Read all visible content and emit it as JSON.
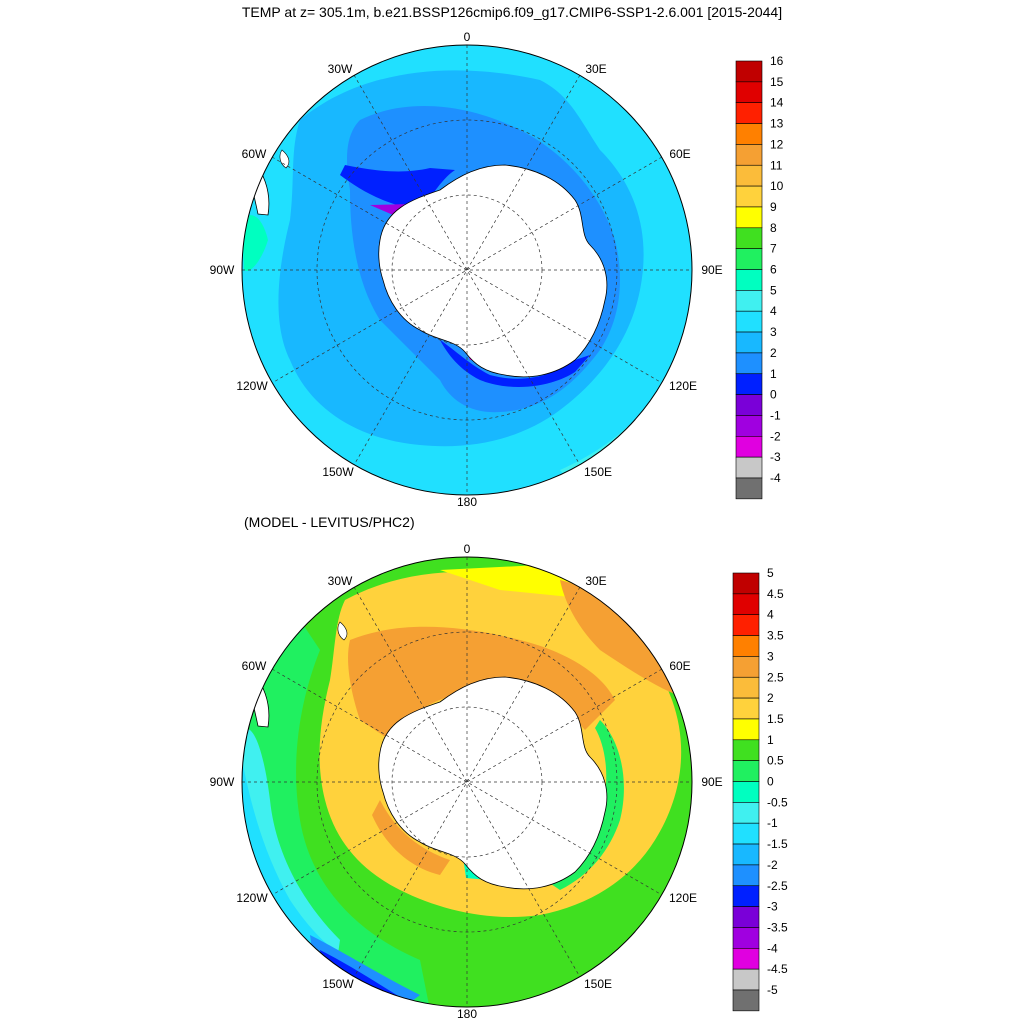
{
  "title": "TEMP at z= 305.1m, b.e21.BSSP126cmip6.f09_g17.CMIP6-SSP1-2.6.001 [2015-2044]",
  "subtitle": "(MODEL - LEVITUS/PHC2)",
  "maps": [
    {
      "id": "model",
      "longitude_labels": [
        "0",
        "30E",
        "60E",
        "90E",
        "120E",
        "150E",
        "180",
        "150W",
        "120W",
        "90W",
        "60W",
        "30W"
      ],
      "colorbar": {
        "labels": [
          "16",
          "15",
          "14",
          "13",
          "12",
          "11",
          "10",
          "9",
          "8",
          "7",
          "6",
          "5",
          "4",
          "3",
          "2",
          "1",
          "0",
          "-1",
          "-2",
          "-3",
          "-4"
        ],
        "colors": [
          "#c00000",
          "#e00000",
          "#ff2000",
          "#ff8000",
          "#f5a033",
          "#fbbc3a",
          "#ffd23c",
          "#ffff00",
          "#40e020",
          "#20f060",
          "#00ffc0",
          "#40f0f0",
          "#20e0ff",
          "#18b8ff",
          "#1e90ff",
          "#0020ff",
          "#7a00d8",
          "#a000e0",
          "#e000e0",
          "#c8c8c8",
          "#707070"
        ]
      }
    },
    {
      "id": "difference",
      "longitude_labels": [
        "0",
        "30E",
        "60E",
        "90E",
        "120E",
        "150E",
        "180",
        "150W",
        "120W",
        "90W",
        "60W",
        "30W"
      ],
      "colorbar": {
        "labels": [
          "5",
          "4.5",
          "4",
          "3.5",
          "3",
          "2.5",
          "2",
          "1.5",
          "1",
          "0.5",
          "0",
          "-0.5",
          "-1",
          "-1.5",
          "-2",
          "-2.5",
          "-3",
          "-3.5",
          "-4",
          "-4.5",
          "-5"
        ],
        "colors": [
          "#c00000",
          "#e00000",
          "#ff2000",
          "#ff8000",
          "#f5a033",
          "#fbbc3a",
          "#ffd23c",
          "#ffff00",
          "#40e020",
          "#20f060",
          "#00ffc0",
          "#40f0f0",
          "#20e0ff",
          "#18b8ff",
          "#1e90ff",
          "#0020ff",
          "#7a00d8",
          "#a000e0",
          "#e000e0",
          "#c8c8c8",
          "#707070"
        ]
      }
    }
  ]
}
